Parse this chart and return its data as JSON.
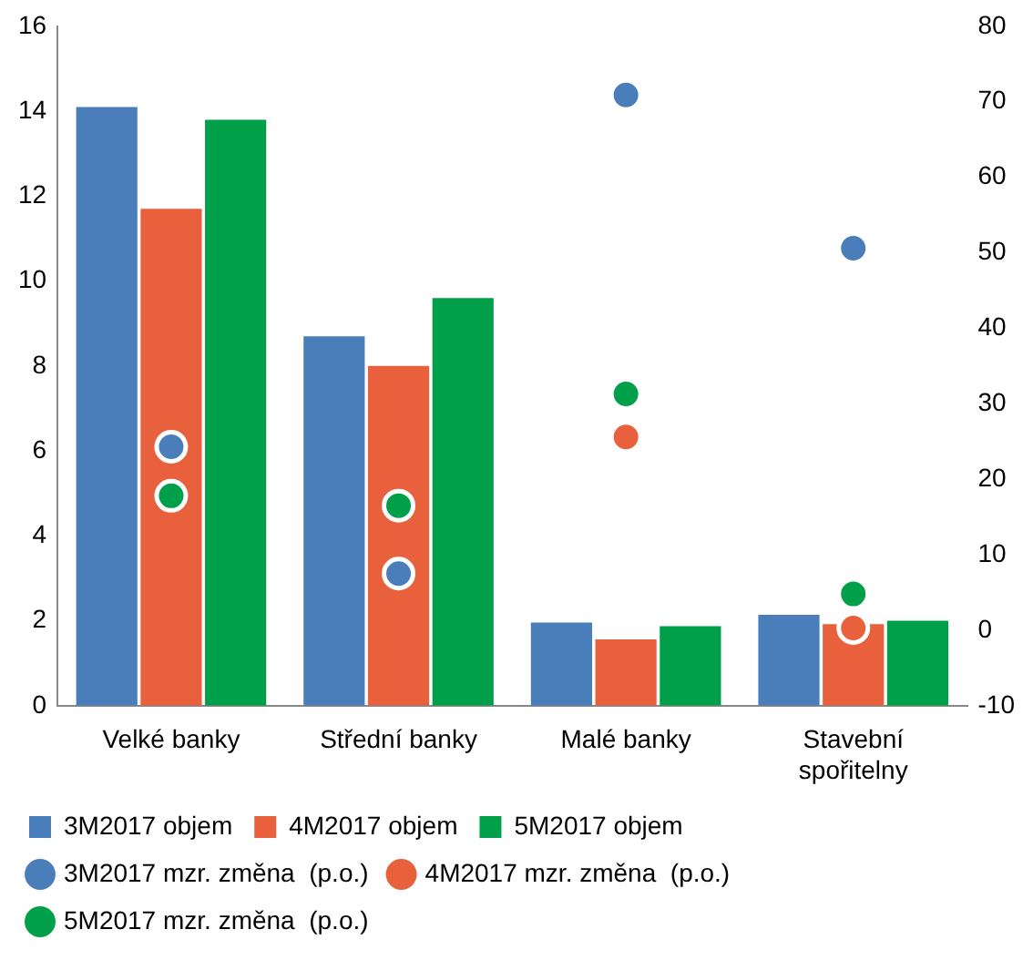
{
  "chart_data": {
    "type": "bar",
    "categories": [
      "Velké banky",
      "Střední banky",
      "Malé banky",
      "Stavební spořitelny"
    ],
    "series": [
      {
        "name": "3M2017 objem",
        "color": "#4a7ebb",
        "values": [
          14.1,
          8.7,
          1.96,
          2.14
        ]
      },
      {
        "name": "4M2017 objem",
        "color": "#e8603c",
        "values": [
          11.7,
          8.0,
          1.56,
          1.92
        ]
      },
      {
        "name": "5M2017 objem",
        "color": "#00a04a",
        "values": [
          13.8,
          9.6,
          1.87,
          2.0
        ]
      },
      {
        "name": "3M2017 mzr. změna  (p.o.)",
        "type": "scatter",
        "axis": "y2",
        "color": "#4a7ebb",
        "values": [
          24.3,
          7.5,
          70.9,
          50.6
        ]
      },
      {
        "name": "4M2017 mzr. změna  (p.o.)",
        "type": "scatter",
        "axis": "y2",
        "color": "#e8603c",
        "values": [
          null,
          null,
          25.6,
          0.3
        ]
      },
      {
        "name": "5M2017 mzr. změna  (p.o.)",
        "type": "scatter",
        "axis": "y2",
        "color": "#00a04a",
        "values": [
          17.8,
          16.5,
          31.3,
          4.8
        ]
      }
    ],
    "ylim": [
      0,
      16
    ],
    "yticks": [
      0,
      2,
      4,
      6,
      8,
      10,
      12,
      14,
      16
    ],
    "y2lim": [
      -10,
      80
    ],
    "y2ticks": [
      -10,
      0,
      10,
      20,
      30,
      40,
      50,
      60,
      70,
      80
    ],
    "grid": false,
    "legend": "bottom",
    "marker": "circle"
  }
}
